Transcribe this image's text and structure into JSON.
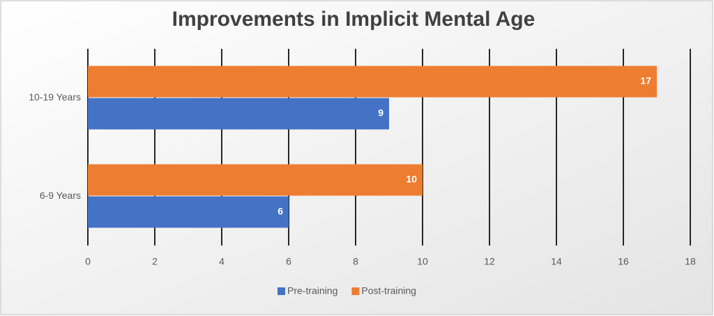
{
  "chart_data": {
    "type": "bar",
    "orientation": "horizontal",
    "title": "Improvements in Implicit Mental Age",
    "categories": [
      "6-9 Years",
      "10-19 Years"
    ],
    "series": [
      {
        "name": "Pre-training",
        "color": "#4472c4",
        "values": [
          6,
          9
        ]
      },
      {
        "name": "Post-training",
        "color": "#ed7d31",
        "values": [
          10,
          17
        ]
      }
    ],
    "xlim": [
      0,
      18
    ],
    "xticks": [
      0,
      2,
      4,
      6,
      8,
      10,
      12,
      14,
      16,
      18
    ],
    "grid": true,
    "legend": "bottom"
  }
}
